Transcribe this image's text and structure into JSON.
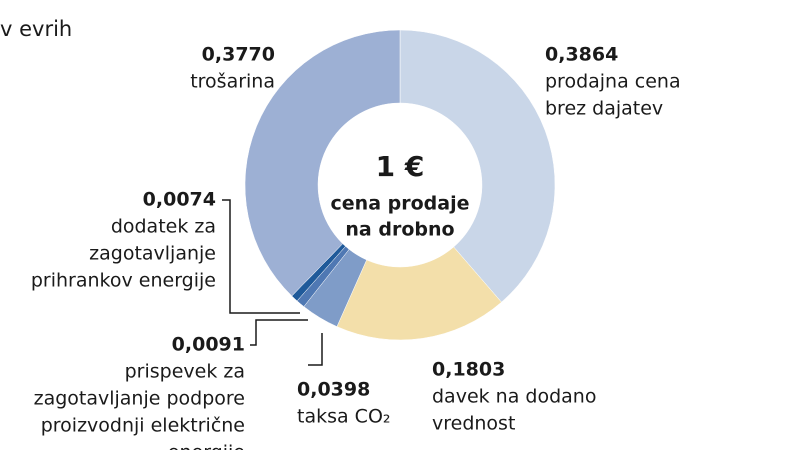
{
  "chart_data": {
    "type": "donut",
    "subtitle": "v evrih",
    "center_title": "1 €",
    "center_lines": [
      "cena prodaje",
      "na drobno"
    ],
    "categories": [
      [
        "prodajna cena",
        "brez dajatev"
      ],
      [
        "davek na dodano",
        "vrednost"
      ],
      [
        "taksa CO₂"
      ],
      [
        "prispevek za",
        "zagotavljanje podpore",
        "proizvodnji električne",
        "energije"
      ],
      [
        "dodatek za",
        "zagotavljanje",
        "prihrankov energije"
      ],
      [
        "trošarina"
      ]
    ],
    "values": [
      0.3864,
      0.1803,
      0.0398,
      0.0091,
      0.0074,
      0.377
    ],
    "value_labels": [
      "0,3864",
      "0,1803",
      "0,0398",
      "0,0091",
      "0,0074",
      "0,3770"
    ],
    "colors": [
      "#c9d6e8",
      "#f3dfaa",
      "#7f9cc8",
      "#4f78b3",
      "#1f5a9a",
      "#9db0d4"
    ]
  }
}
